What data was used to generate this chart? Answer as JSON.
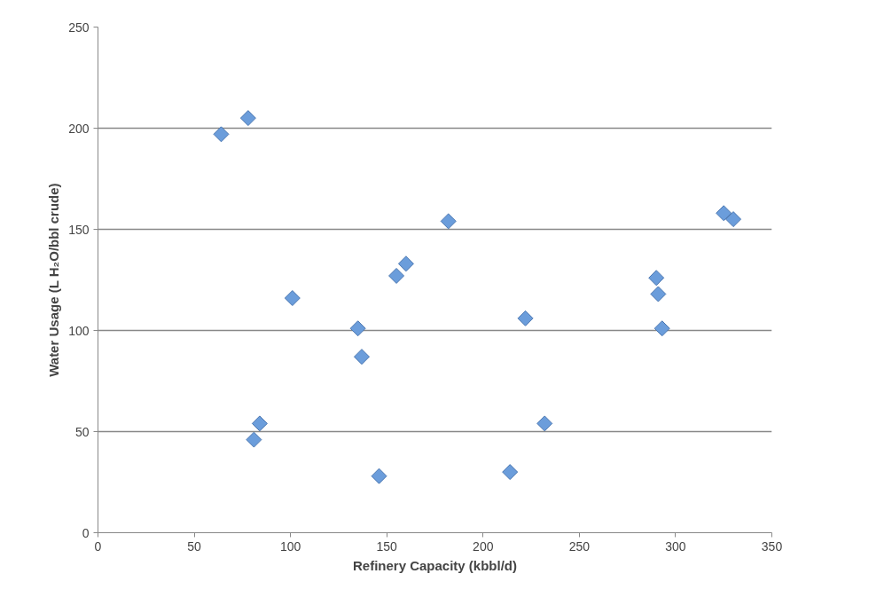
{
  "chart_data": {
    "type": "scatter",
    "xlabel": "Refinery Capacity (kbbl/d)",
    "ylabel": "Water Usage (L H₂O/bbl crude)",
    "xlim": [
      0,
      350
    ],
    "xticks": [
      0,
      50,
      100,
      150,
      200,
      250,
      300,
      350
    ],
    "ylim": [
      0,
      250
    ],
    "yticks": [
      0,
      50,
      100,
      150,
      200,
      250
    ],
    "grid": "y",
    "marker": "diamond",
    "series": [
      {
        "color": "#6b9ddb",
        "x": [
          64,
          78,
          101,
          135,
          137,
          84,
          81,
          146,
          155,
          160,
          182,
          222,
          232,
          214,
          290,
          291,
          293,
          325,
          330
        ],
        "values": [
          197,
          205,
          116,
          101,
          87,
          54,
          46,
          28,
          127,
          133,
          154,
          106,
          54,
          30,
          126,
          118,
          101,
          158,
          155
        ]
      }
    ]
  }
}
